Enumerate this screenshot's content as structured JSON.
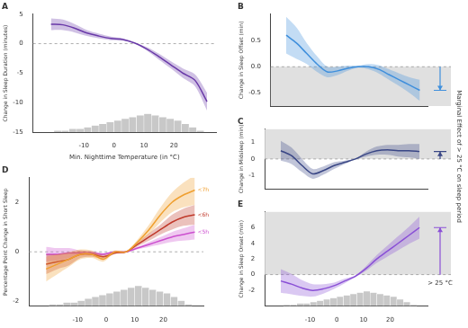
{
  "chart_data": [
    {
      "type": "line",
      "title": "A",
      "y_label": "Change in Sleep Duration (minutes)",
      "x_label": "Min. Nighttime Temperature (in °C)",
      "x": [
        -21,
        -17,
        -13,
        -9,
        -5,
        -1,
        3,
        7,
        11,
        15,
        19,
        23,
        27,
        31
      ],
      "values": [
        3.3,
        3.2,
        2.6,
        1.8,
        1.3,
        0.9,
        0.7,
        0.1,
        -0.9,
        -2.2,
        -3.6,
        -5.0,
        -6.2,
        -9.8
      ],
      "lower": [
        2.3,
        2.3,
        1.9,
        1.3,
        0.9,
        0.6,
        0.5,
        0.05,
        -1.2,
        -2.7,
        -4.2,
        -5.8,
        -7.2,
        -11.3
      ],
      "upper": [
        4.3,
        4.1,
        3.3,
        2.3,
        1.7,
        1.2,
        0.9,
        0.15,
        -0.6,
        -1.7,
        -3.0,
        -4.2,
        -5.2,
        -8.3
      ],
      "color": "#6a3aa8",
      "hline": 0,
      "xlim": [
        -27,
        34
      ],
      "xticks": [
        -10,
        0,
        10,
        20
      ],
      "ylim": [
        -15,
        5
      ],
      "yticks": [
        -15,
        -10,
        -5,
        0,
        5
      ],
      "histogram": {
        "bins": [
          -20,
          -17.5,
          -15,
          -12.5,
          -10,
          -7.5,
          -5,
          -2.5,
          0,
          2.5,
          5,
          7.5,
          10,
          12.5,
          15,
          17.5,
          20,
          22.5,
          25,
          27.5,
          30
        ],
        "counts": [
          1,
          1,
          2,
          2,
          3,
          4,
          5,
          6,
          7,
          8,
          9,
          10,
          11,
          10,
          9,
          8,
          7,
          5,
          3,
          1
        ],
        "ylim": [
          0,
          70
        ]
      }
    },
    {
      "type": "line",
      "title": "B",
      "y_label": "Change in Sleep Offset (min)",
      "x": [
        -21,
        -17,
        -13,
        -9,
        -5,
        -1,
        3,
        7,
        11,
        15,
        19,
        23,
        27,
        31
      ],
      "values": [
        0.6,
        0.45,
        0.25,
        0.05,
        -0.1,
        -0.08,
        -0.03,
        0,
        0,
        -0.05,
        -0.15,
        -0.25,
        -0.35,
        -0.45
      ],
      "lower": [
        0.25,
        0.15,
        0.05,
        -0.1,
        -0.2,
        -0.16,
        -0.08,
        -0.02,
        -0.05,
        -0.13,
        -0.25,
        -0.37,
        -0.5,
        -0.65
      ],
      "upper": [
        0.95,
        0.75,
        0.45,
        0.2,
        0,
        0,
        0.02,
        0.02,
        0.05,
        0.03,
        -0.05,
        -0.13,
        -0.2,
        -0.25
      ],
      "color": "#3f8fdc",
      "hline": 0,
      "tick_labels": "y",
      "xlim": [
        -27,
        34
      ],
      "xticks": [
        -10,
        0,
        10,
        20
      ],
      "ylim": [
        -0.75,
        1.0
      ],
      "yticks": [
        -0.5,
        {
          "value": 0,
          "label": "0.0"
        },
        0.5
      ]
    },
    {
      "type": "line",
      "title": "C",
      "y_label": "Change in Midsleep (min)",
      "annotation": "Marginal Effect of > 25 °C on sleep period",
      "x": [
        -21,
        -17,
        -13,
        -9,
        -5,
        -1,
        3,
        7,
        11,
        15,
        19,
        23,
        27,
        31
      ],
      "values": [
        0.5,
        0.2,
        -0.4,
        -0.9,
        -0.7,
        -0.4,
        -0.2,
        0,
        0.3,
        0.5,
        0.55,
        0.5,
        0.5,
        0.45
      ],
      "lower": [
        -0.1,
        -0.3,
        -0.8,
        -1.2,
        -0.95,
        -0.6,
        -0.3,
        -0.03,
        0.15,
        0.25,
        0.25,
        0.15,
        0.1,
        0
      ],
      "upper": [
        1.1,
        0.7,
        0,
        -0.6,
        -0.45,
        -0.2,
        -0.1,
        0.03,
        0.45,
        0.75,
        0.85,
        0.85,
        0.9,
        0.9
      ],
      "color": "#3a4785",
      "hline": 0,
      "tick_labels": "y",
      "xlim": [
        -27,
        34
      ],
      "xticks": [
        -10,
        0,
        10,
        20
      ],
      "ylim": [
        -1.8,
        1.8
      ],
      "yticks": [
        -1,
        0,
        1
      ]
    },
    {
      "type": "line",
      "title": "D",
      "y_label": "Percentage Point Change in Short Sleep",
      "x": [
        -21,
        -17,
        -13,
        -9,
        -5,
        -1,
        3,
        7,
        11,
        15,
        19,
        23,
        27,
        31
      ],
      "series": [
        {
          "name": "<7h",
          "color": "#f0a030",
          "values": [
            -0.7,
            -0.5,
            -0.3,
            -0.1,
            -0.1,
            -0.3,
            0,
            0,
            0.4,
            0.9,
            1.5,
            2.0,
            2.3,
            2.5
          ],
          "lower": [
            -1.2,
            -0.9,
            -0.6,
            -0.3,
            -0.25,
            -0.4,
            -0.05,
            -0.02,
            0.3,
            0.7,
            1.2,
            1.6,
            1.8,
            1.9
          ],
          "upper": [
            -0.2,
            -0.1,
            0,
            0.1,
            0.05,
            -0.2,
            0.05,
            0.02,
            0.5,
            1.1,
            1.8,
            2.4,
            2.8,
            3.1
          ]
        },
        {
          "name": "<6h",
          "color": "#c0392b",
          "values": [
            -0.5,
            -0.4,
            -0.3,
            -0.1,
            -0.1,
            -0.2,
            -0.05,
            0,
            0.3,
            0.6,
            0.9,
            1.2,
            1.4,
            1.5
          ],
          "lower": [
            -0.9,
            -0.7,
            -0.55,
            -0.25,
            -0.2,
            -0.28,
            -0.09,
            -0.02,
            0.22,
            0.45,
            0.7,
            0.9,
            1.05,
            1.1
          ],
          "upper": [
            -0.1,
            -0.1,
            -0.05,
            0.05,
            0,
            -0.12,
            -0.01,
            0.02,
            0.38,
            0.75,
            1.1,
            1.5,
            1.75,
            1.9
          ]
        },
        {
          "name": "<5h",
          "color": "#cc4fcf",
          "values": [
            -0.1,
            -0.1,
            -0.05,
            -0.05,
            -0.05,
            -0.1,
            0,
            0,
            0.15,
            0.3,
            0.45,
            0.6,
            0.7,
            0.8
          ],
          "lower": [
            -0.4,
            -0.35,
            -0.25,
            -0.15,
            -0.13,
            -0.15,
            -0.03,
            -0.01,
            0.1,
            0.2,
            0.3,
            0.4,
            0.45,
            0.5
          ],
          "upper": [
            0.2,
            0.15,
            0.15,
            0.05,
            0.03,
            -0.05,
            0.03,
            0.01,
            0.2,
            0.4,
            0.6,
            0.8,
            0.95,
            1.1
          ]
        }
      ],
      "hline": 0,
      "xlim": [
        -27,
        34
      ],
      "xticks": [
        -10,
        0,
        10,
        20
      ],
      "ylim": [
        -2.2,
        3
      ],
      "yticks": [
        -2,
        0,
        2
      ],
      "histogram": {
        "bins": [
          -20,
          -17.5,
          -15,
          -12.5,
          -10,
          -7.5,
          -5,
          -2.5,
          0,
          2.5,
          5,
          7.5,
          10,
          12.5,
          15,
          17.5,
          20,
          22.5,
          25,
          27.5,
          30
        ],
        "counts": [
          1,
          1,
          2,
          2,
          3,
          4,
          5,
          6,
          7,
          8,
          9,
          10,
          11,
          10,
          9,
          8,
          7,
          5,
          3,
          1
        ],
        "ylim": [
          0,
          70
        ]
      }
    },
    {
      "type": "line",
      "title": "E",
      "y_label": "Change in Sleep Onset (min)",
      "annotation": "> 25 °C",
      "x": [
        -21,
        -17,
        -13,
        -9,
        -5,
        -1,
        3,
        7,
        11,
        15,
        19,
        23,
        27,
        31
      ],
      "values": [
        -0.8,
        -1.2,
        -1.7,
        -2.0,
        -1.8,
        -1.4,
        -0.8,
        -0.2,
        0.8,
        2.0,
        3.0,
        4.0,
        5.0,
        6.0
      ],
      "lower": [
        -2.3,
        -2.5,
        -2.7,
        -2.8,
        -2.4,
        -1.8,
        -1.1,
        -0.3,
        0.5,
        1.5,
        2.3,
        3.1,
        3.9,
        4.6
      ],
      "upper": [
        0.7,
        0.1,
        -0.7,
        -1.2,
        -1.2,
        -1.0,
        -0.5,
        -0.1,
        1.1,
        2.5,
        3.7,
        4.9,
        6.1,
        7.4
      ],
      "color": "#8a4fd6",
      "hline": 0,
      "xlim": [
        -27,
        34
      ],
      "xticks": [
        -10,
        0,
        10,
        20
      ],
      "ylim": [
        -4,
        8
      ],
      "yticks": [
        -2,
        0,
        2,
        4,
        6
      ],
      "histogram": {
        "bins": [
          -20,
          -17.5,
          -15,
          -12.5,
          -10,
          -7.5,
          -5,
          -2.5,
          0,
          2.5,
          5,
          7.5,
          10,
          12.5,
          15,
          17.5,
          20,
          22.5,
          25,
          27.5,
          30
        ],
        "counts": [
          1,
          1,
          2,
          2,
          3,
          4,
          5,
          6,
          7,
          8,
          9,
          10,
          11,
          10,
          9,
          8,
          7,
          5,
          3,
          1
        ],
        "ylim": [
          0,
          70
        ]
      }
    }
  ]
}
